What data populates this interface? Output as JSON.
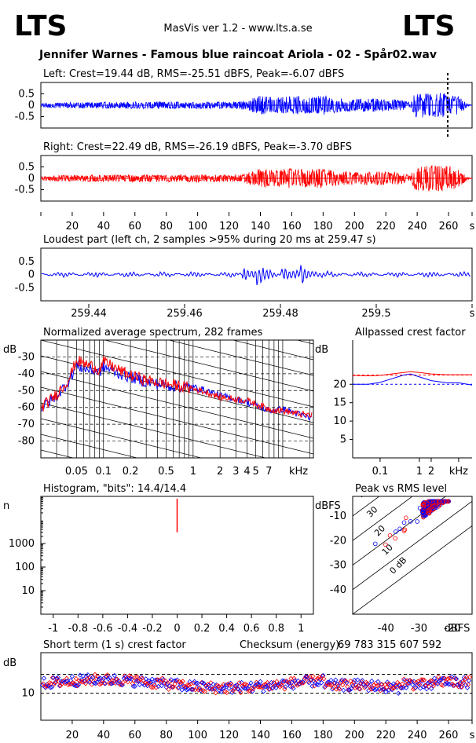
{
  "header": {
    "logo_left": "LTS",
    "logo_right": "LTS",
    "app_title": "MasVis ver 1.2 - www.lts.a.se",
    "file_title": "Jennifer Warnes - Famous blue raincoat Ariola - 02 - Spår02.wav"
  },
  "colors": {
    "left": "#0000ff",
    "right": "#ff0000",
    "axis": "#000000"
  },
  "chart_data": [
    {
      "id": "left_wave",
      "type": "line",
      "title": "Left: Crest=19.44 dB, RMS=-25.51 dBFS, Peak=-6.07 dBFS",
      "yticks": [
        "0.5",
        "0",
        "-0.5"
      ],
      "ylim": [
        -1,
        1
      ],
      "xlim": [
        0,
        275
      ],
      "marker_x": 259.47,
      "envelope": {
        "x": [
          0,
          10,
          20,
          40,
          60,
          80,
          100,
          120,
          130,
          140,
          150,
          160,
          170,
          180,
          190,
          200,
          210,
          220,
          230,
          236,
          238,
          245,
          255,
          262,
          268,
          272,
          275
        ],
        "y": [
          0.08,
          0.12,
          0.13,
          0.14,
          0.15,
          0.15,
          0.16,
          0.15,
          0.2,
          0.42,
          0.35,
          0.42,
          0.36,
          0.42,
          0.3,
          0.28,
          0.3,
          0.27,
          0.25,
          0.1,
          0.5,
          0.55,
          0.55,
          0.5,
          0.35,
          0.05,
          0.02
        ]
      }
    },
    {
      "id": "right_wave",
      "type": "line",
      "title": "Right: Crest=22.49 dB, RMS=-26.19 dBFS, Peak=-3.70 dBFS",
      "yticks": [
        "0.5",
        "0",
        "-0.5"
      ],
      "ylim": [
        -1,
        1
      ],
      "xlim": [
        0,
        275
      ],
      "xticks": [
        "20",
        "40",
        "60",
        "80",
        "100",
        "120",
        "140",
        "160",
        "180",
        "200",
        "220",
        "240",
        "260",
        "s"
      ],
      "envelope": {
        "x": [
          0,
          10,
          20,
          40,
          60,
          80,
          100,
          120,
          130,
          140,
          150,
          160,
          170,
          180,
          190,
          200,
          210,
          220,
          230,
          236,
          238,
          245,
          255,
          262,
          268,
          272,
          275
        ],
        "y": [
          0.08,
          0.12,
          0.13,
          0.14,
          0.15,
          0.15,
          0.16,
          0.15,
          0.2,
          0.42,
          0.35,
          0.42,
          0.36,
          0.42,
          0.3,
          0.28,
          0.3,
          0.27,
          0.25,
          0.1,
          0.5,
          0.55,
          0.55,
          0.5,
          0.35,
          0.05,
          0.02
        ]
      }
    },
    {
      "id": "loudest_part",
      "type": "line",
      "title": "Loudest part (left  ch, 2 samples >95% during 20 ms at 259.47 s)",
      "yticks": [
        "0.5",
        "0",
        "-0.5"
      ],
      "ylim": [
        -1,
        1
      ],
      "xlim": [
        259.43,
        259.52
      ],
      "xticks": [
        "259.44",
        "259.46",
        "259.48",
        "259.5",
        "s"
      ],
      "xtick_values": [
        259.44,
        259.46,
        259.48,
        259.5,
        259.52
      ],
      "events": [
        259.472,
        259.475,
        259.48,
        259.484
      ]
    },
    {
      "id": "spectrum",
      "type": "line",
      "title": "Normalized average spectrum, 282 frames",
      "ylabel": "dB",
      "yticks": [
        "-30",
        "-40",
        "-50",
        "-60",
        "-70",
        "-80"
      ],
      "ylim": [
        -90,
        -20
      ],
      "xticks": [
        "0.05",
        "0.1",
        "0.2",
        "0.5",
        "1",
        "2",
        "3",
        "4",
        "5",
        "7",
        "kHz"
      ],
      "xlim": [
        0.02,
        22
      ],
      "series": [
        {
          "x": [
            0.02,
            0.03,
            0.04,
            0.05,
            0.06,
            0.08,
            0.09,
            0.1,
            0.15,
            0.2,
            0.3,
            0.5,
            0.8,
            1,
            2,
            3,
            4,
            5,
            7,
            10,
            15,
            22
          ],
          "y": [
            -60,
            -53,
            -45,
            -35,
            -37,
            -38,
            -39,
            -36,
            -40,
            -42,
            -45,
            -47,
            -48,
            -48,
            -53,
            -55,
            -57,
            -59,
            -62,
            -61,
            -64,
            -67
          ]
        },
        {
          "x": [
            0.02,
            0.03,
            0.04,
            0.05,
            0.06,
            0.08,
            0.09,
            0.1,
            0.15,
            0.2,
            0.3,
            0.5,
            0.8,
            1,
            2,
            3,
            4,
            5,
            7,
            10,
            15,
            22
          ],
          "y": [
            -60,
            -52,
            -44,
            -32,
            -34,
            -36,
            -38,
            -33,
            -38,
            -41,
            -44,
            -46,
            -48,
            -49,
            -54,
            -55,
            -56,
            -58,
            -61,
            -62,
            -64,
            -65
          ]
        }
      ]
    },
    {
      "id": "crest",
      "type": "line",
      "title": "Allpassed crest factor",
      "ylabel": "dB",
      "yticks": [
        "20",
        "15",
        "10",
        "5"
      ],
      "ylim": [
        0,
        32
      ],
      "xticks": [
        "0.1",
        "1",
        "2",
        "kHz"
      ],
      "xlim": [
        0.02,
        22
      ],
      "series": [
        {
          "x": [
            0.02,
            0.05,
            0.1,
            0.2,
            0.4,
            0.6,
            1,
            2,
            5,
            10,
            22
          ],
          "y": [
            20,
            20,
            20.5,
            21.5,
            22.5,
            22.8,
            22,
            21,
            20.4,
            20.4,
            19.8
          ]
        },
        {
          "x": [
            0.02,
            0.05,
            0.1,
            0.2,
            0.4,
            0.6,
            1,
            2,
            5,
            10,
            22
          ],
          "y": [
            22.4,
            22.3,
            22.4,
            22.8,
            23.2,
            23.4,
            23.2,
            22.8,
            22.6,
            22.6,
            22.6
          ]
        }
      ],
      "ref_lines": [
        20,
        22.5
      ]
    },
    {
      "id": "histogram",
      "type": "line",
      "title": "Histogram, \"bits\": 14.4/14.4",
      "ylabel": "n",
      "yticks": [
        "1000",
        "100",
        "10"
      ],
      "ylim": [
        1,
        100000
      ],
      "xticks": [
        "-1",
        "-0.8",
        "-0.6",
        "-0.4",
        "-0.2",
        "0",
        "0.2",
        "0.4",
        "0.6",
        "0.8",
        "1"
      ],
      "xlim": [
        -1.1,
        1.1
      ],
      "peak": 3000
    },
    {
      "id": "peak_rms",
      "type": "scatter",
      "title": "Peak vs RMS level",
      "ylabel": "dBFS",
      "xlabel": "dBFS",
      "yticks": [
        "-10",
        "-20",
        "-30",
        "-40"
      ],
      "ylim": [
        -50,
        -2
      ],
      "xticks": [
        "-40",
        "-30",
        "-20"
      ],
      "xlim": [
        -50,
        -14
      ],
      "diag_labels": [
        "40",
        "30",
        "20",
        "10",
        "0 dB"
      ]
    },
    {
      "id": "short_crest",
      "type": "scatter",
      "title": "Short term (1 s) crest factor",
      "ylabel": "dB",
      "yticks": [
        "10"
      ],
      "ylim": [
        0,
        25
      ],
      "xticks": [
        "20",
        "40",
        "60",
        "80",
        "100",
        "120",
        "140",
        "160",
        "180",
        "200",
        "220",
        "240",
        "260",
        "s"
      ],
      "xlim": [
        0,
        275
      ],
      "ref_lines": [
        10,
        17
      ]
    }
  ],
  "checksum": {
    "label": "Checksum (energy):",
    "value": "69 783 315 607 592"
  }
}
